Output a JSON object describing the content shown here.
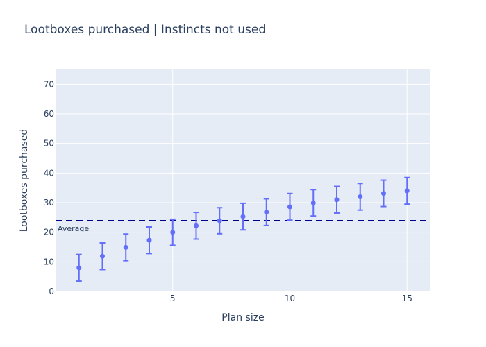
{
  "chart_data": {
    "type": "scatter",
    "title": "Lootboxes purchased | Instincts not used",
    "xlabel": "Plan size",
    "ylabel": "Lootboxes purchased",
    "xlim": [
      0,
      16
    ],
    "ylim": [
      0,
      75
    ],
    "xticks": [
      5,
      10,
      15
    ],
    "yticks": [
      0,
      10,
      20,
      30,
      40,
      50,
      60,
      70
    ],
    "grid": true,
    "legend": false,
    "series": [
      {
        "x": [
          1,
          2,
          3,
          4,
          5,
          6,
          7,
          8,
          9,
          10,
          11,
          12,
          13,
          14,
          15
        ],
        "y": [
          8,
          11.9,
          14.9,
          17.3,
          20,
          22.2,
          23.9,
          25.3,
          26.8,
          28.6,
          29.9,
          31,
          32,
          33.1,
          34
        ],
        "error_low": [
          3.5,
          7.4,
          10.4,
          12.8,
          15.6,
          17.7,
          19.5,
          20.8,
          22.3,
          24.1,
          25.5,
          26.5,
          27.5,
          28.7,
          29.5
        ],
        "error_high": [
          12.5,
          16.4,
          19.4,
          21.8,
          24.4,
          26.7,
          28.3,
          29.8,
          31.3,
          33.1,
          34.4,
          35.5,
          36.5,
          37.6,
          38.5
        ],
        "color": "#636efa"
      }
    ],
    "reference_line": {
      "y": 23.9,
      "label": "Average",
      "color": "#00008b",
      "style": "dashed"
    },
    "colors": {
      "plot_background": "#e5ecf6",
      "grid": "#ffffff",
      "text": "#2a3f5f"
    }
  }
}
